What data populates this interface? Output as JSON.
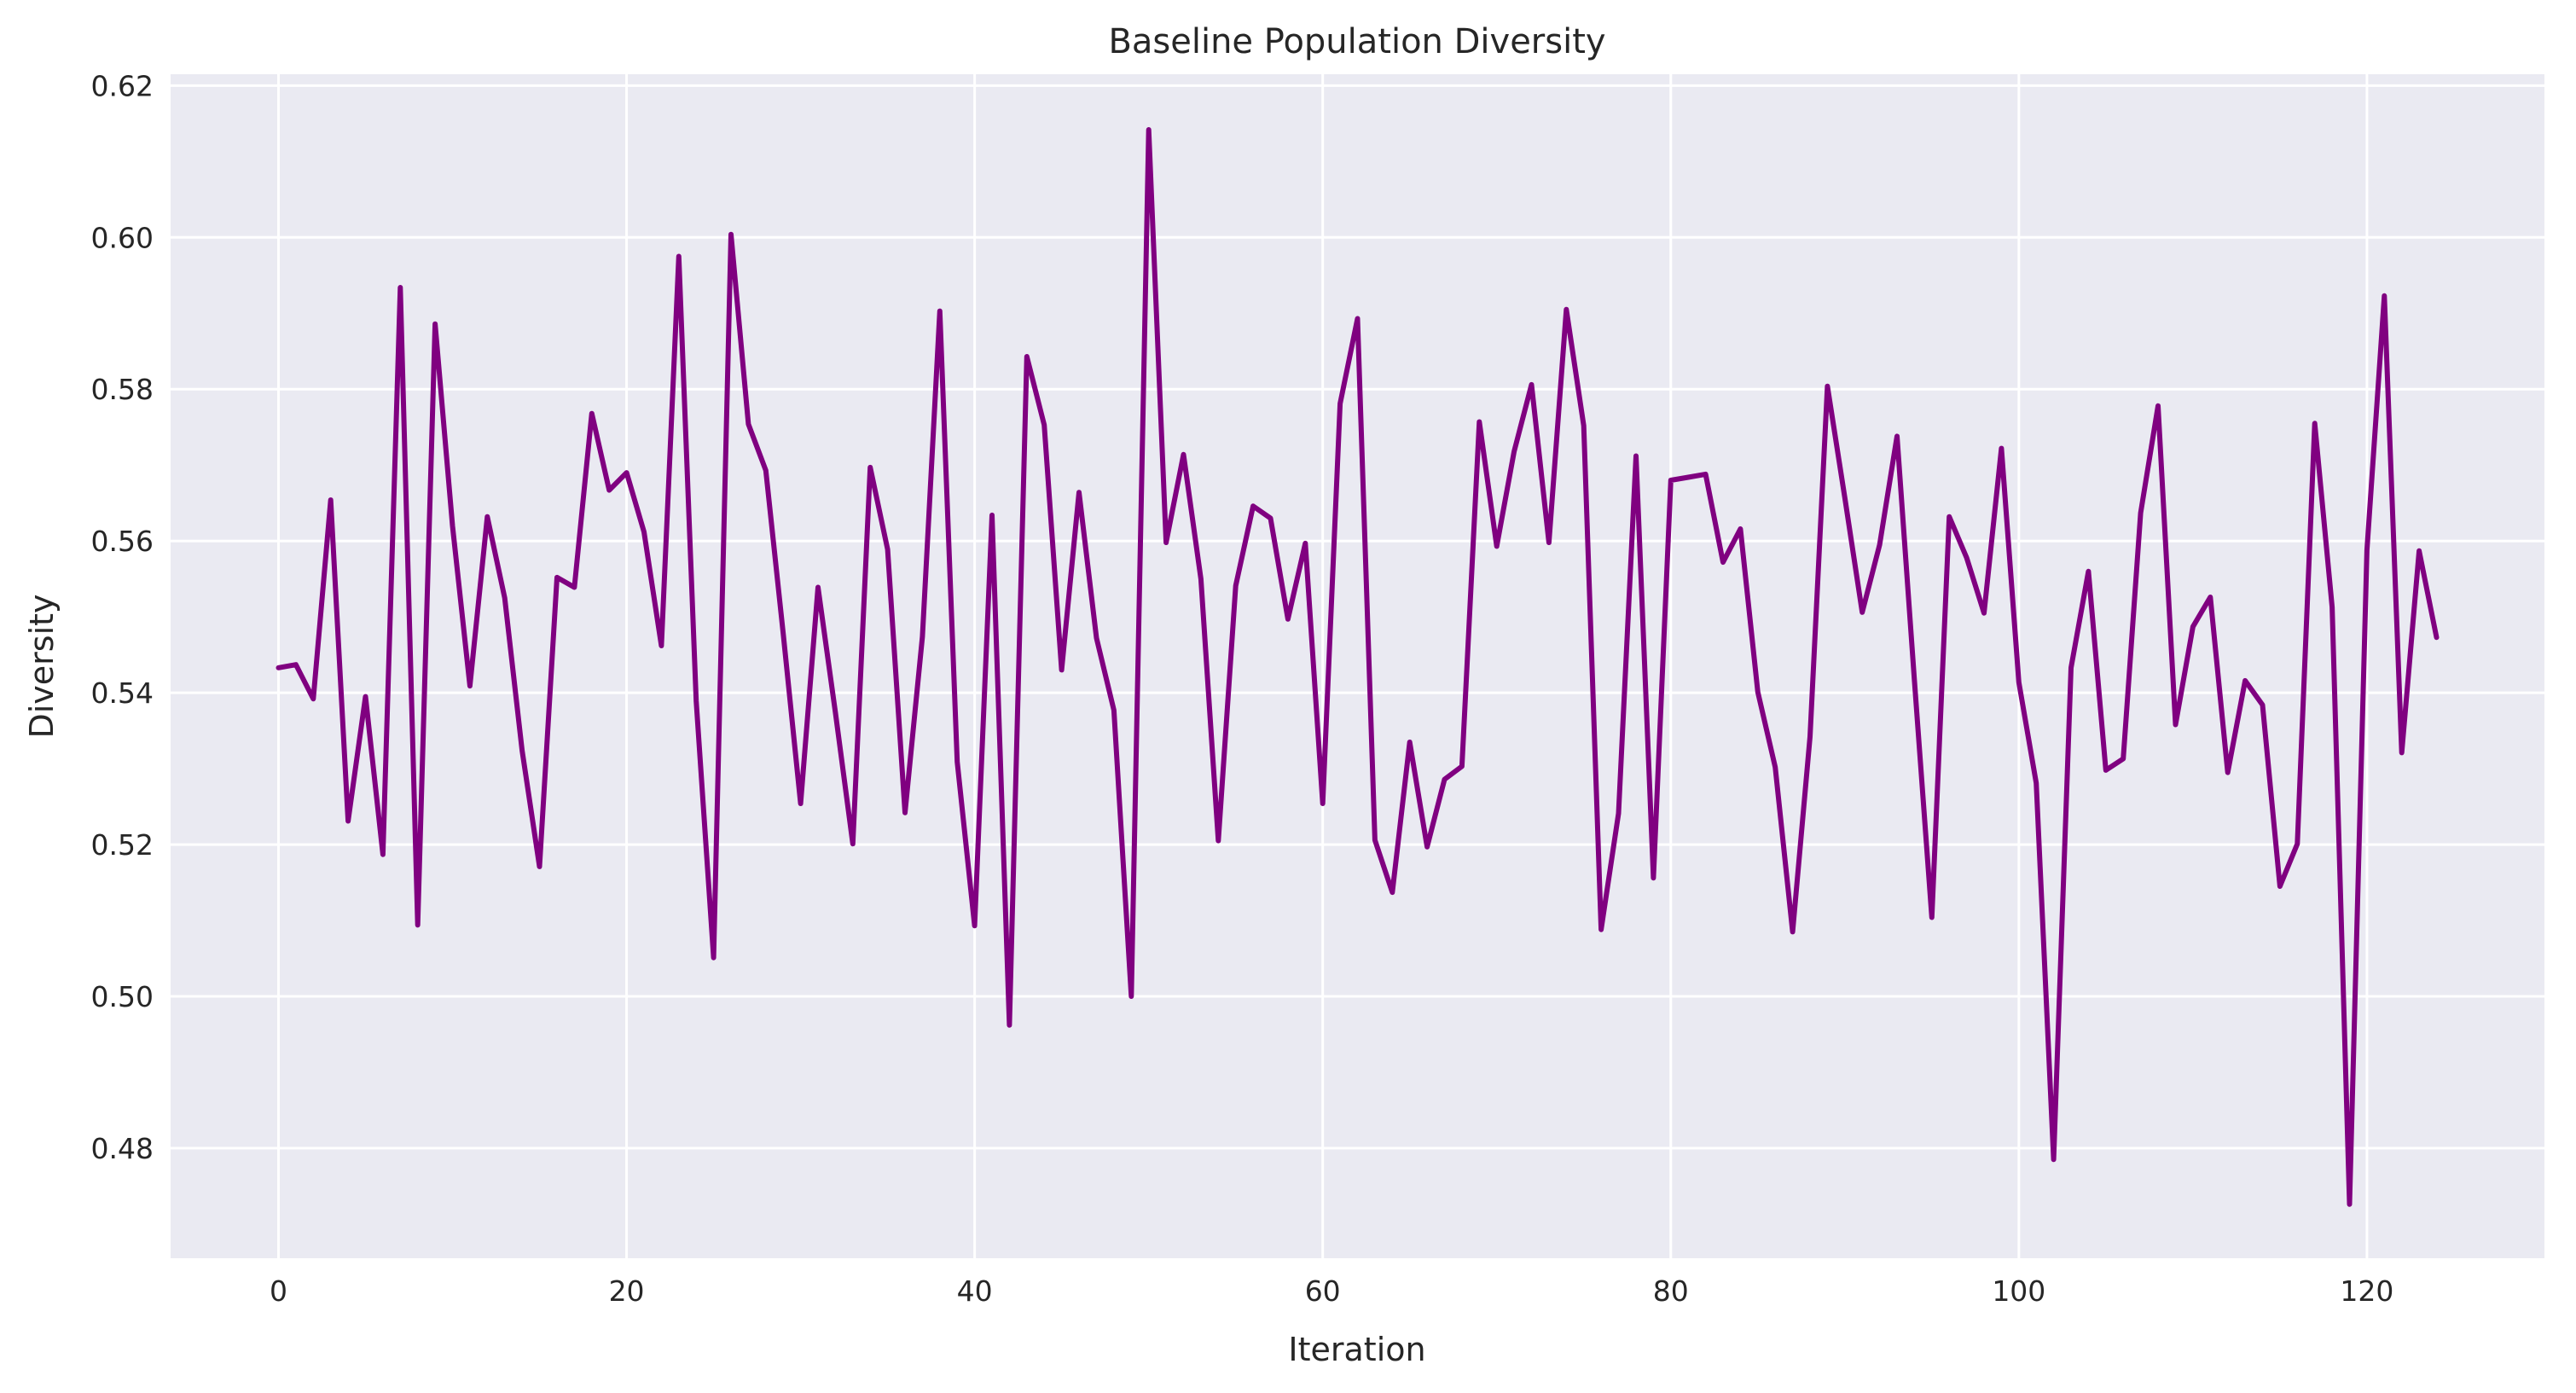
{
  "chart_data": {
    "type": "line",
    "title": "Baseline Population Diversity",
    "xlabel": "Iteration",
    "ylabel": "Diversity",
    "xlim": [
      -6.2,
      130.2
    ],
    "ylim": [
      0.4655,
      0.6215
    ],
    "xticks": [
      0,
      20,
      40,
      60,
      80,
      100,
      120
    ],
    "yticks": [
      0.48,
      0.5,
      0.52,
      0.54,
      0.56,
      0.58,
      0.6,
      0.62
    ],
    "xtick_labels": [
      "0",
      "20",
      "40",
      "60",
      "80",
      "100",
      "120"
    ],
    "ytick_labels": [
      "0.48",
      "0.50",
      "0.52",
      "0.54",
      "0.56",
      "0.58",
      "0.60",
      "0.62"
    ],
    "grid": true,
    "legend": false,
    "background_color": "#eaeaf2",
    "grid_color": "#ffffff",
    "line_color": "#800080",
    "series": [
      {
        "x": [
          0,
          1,
          2,
          3,
          4,
          5,
          6,
          7,
          8,
          9,
          10,
          11,
          12,
          13,
          14,
          15,
          16,
          17,
          18,
          19,
          20,
          21,
          22,
          23,
          24,
          25,
          26,
          27,
          28,
          29,
          30,
          31,
          32,
          33,
          34,
          35,
          36,
          37,
          38,
          39,
          40,
          41,
          42,
          43,
          44,
          45,
          46,
          47,
          48,
          49,
          50,
          51,
          52,
          53,
          54,
          55,
          56,
          57,
          58,
          59,
          60,
          61,
          62,
          63,
          64,
          65,
          66,
          67,
          68,
          69,
          70,
          71,
          72,
          73,
          74,
          75,
          76,
          77,
          78,
          79,
          80,
          81,
          82,
          83,
          84,
          85,
          86,
          87,
          88,
          89,
          90,
          91,
          92,
          93,
          94,
          95,
          96,
          97,
          98,
          99,
          100,
          101,
          102,
          103,
          104,
          105,
          106,
          107,
          108,
          109,
          110,
          111,
          112,
          113,
          114,
          115,
          116,
          117,
          118,
          119,
          120,
          121,
          122,
          123,
          124
        ],
        "values": [
          0.5433,
          0.5437,
          0.5392,
          0.5654,
          0.5231,
          0.5395,
          0.5187,
          0.5934,
          0.5094,
          0.5886,
          0.562,
          0.5409,
          0.5632,
          0.5525,
          0.5324,
          0.5171,
          0.5552,
          0.5539,
          0.5768,
          0.5667,
          0.569,
          0.5612,
          0.5462,
          0.5975,
          0.5389,
          0.5051,
          0.6004,
          0.5754,
          0.5693,
          0.5478,
          0.5254,
          0.5539,
          0.5374,
          0.5201,
          0.5697,
          0.5589,
          0.5242,
          0.5474,
          0.5903,
          0.5309,
          0.5093,
          0.5634,
          0.4962,
          0.5843,
          0.5753,
          0.543,
          0.5664,
          0.5472,
          0.5377,
          0.5,
          0.6142,
          0.5598,
          0.5714,
          0.555,
          0.5205,
          0.5541,
          0.5646,
          0.563,
          0.5497,
          0.5597,
          0.5254,
          0.5781,
          0.5893,
          0.5206,
          0.5137,
          0.5335,
          0.5197,
          0.5286,
          0.5303,
          0.5757,
          0.5593,
          0.5718,
          0.5806,
          0.5598,
          0.5905,
          0.5752,
          0.5088,
          0.5241,
          0.5712,
          0.5156,
          0.568,
          0.5684,
          0.5688,
          0.5572,
          0.5616,
          0.5401,
          0.5302,
          0.5085,
          0.5342,
          0.5804,
          0.5657,
          0.5506,
          0.5595,
          0.5738,
          0.5416,
          0.5104,
          0.5632,
          0.5578,
          0.5505,
          0.5722,
          0.5414,
          0.5281,
          0.4785,
          0.5433,
          0.556,
          0.5298,
          0.5313,
          0.5637,
          0.5778,
          0.5358,
          0.5487,
          0.5526,
          0.5295,
          0.5416,
          0.5384,
          0.5145,
          0.5201,
          0.5755,
          0.5513,
          0.4726,
          0.5588,
          0.5923,
          0.5321,
          0.5587,
          0.5473
        ]
      }
    ]
  }
}
